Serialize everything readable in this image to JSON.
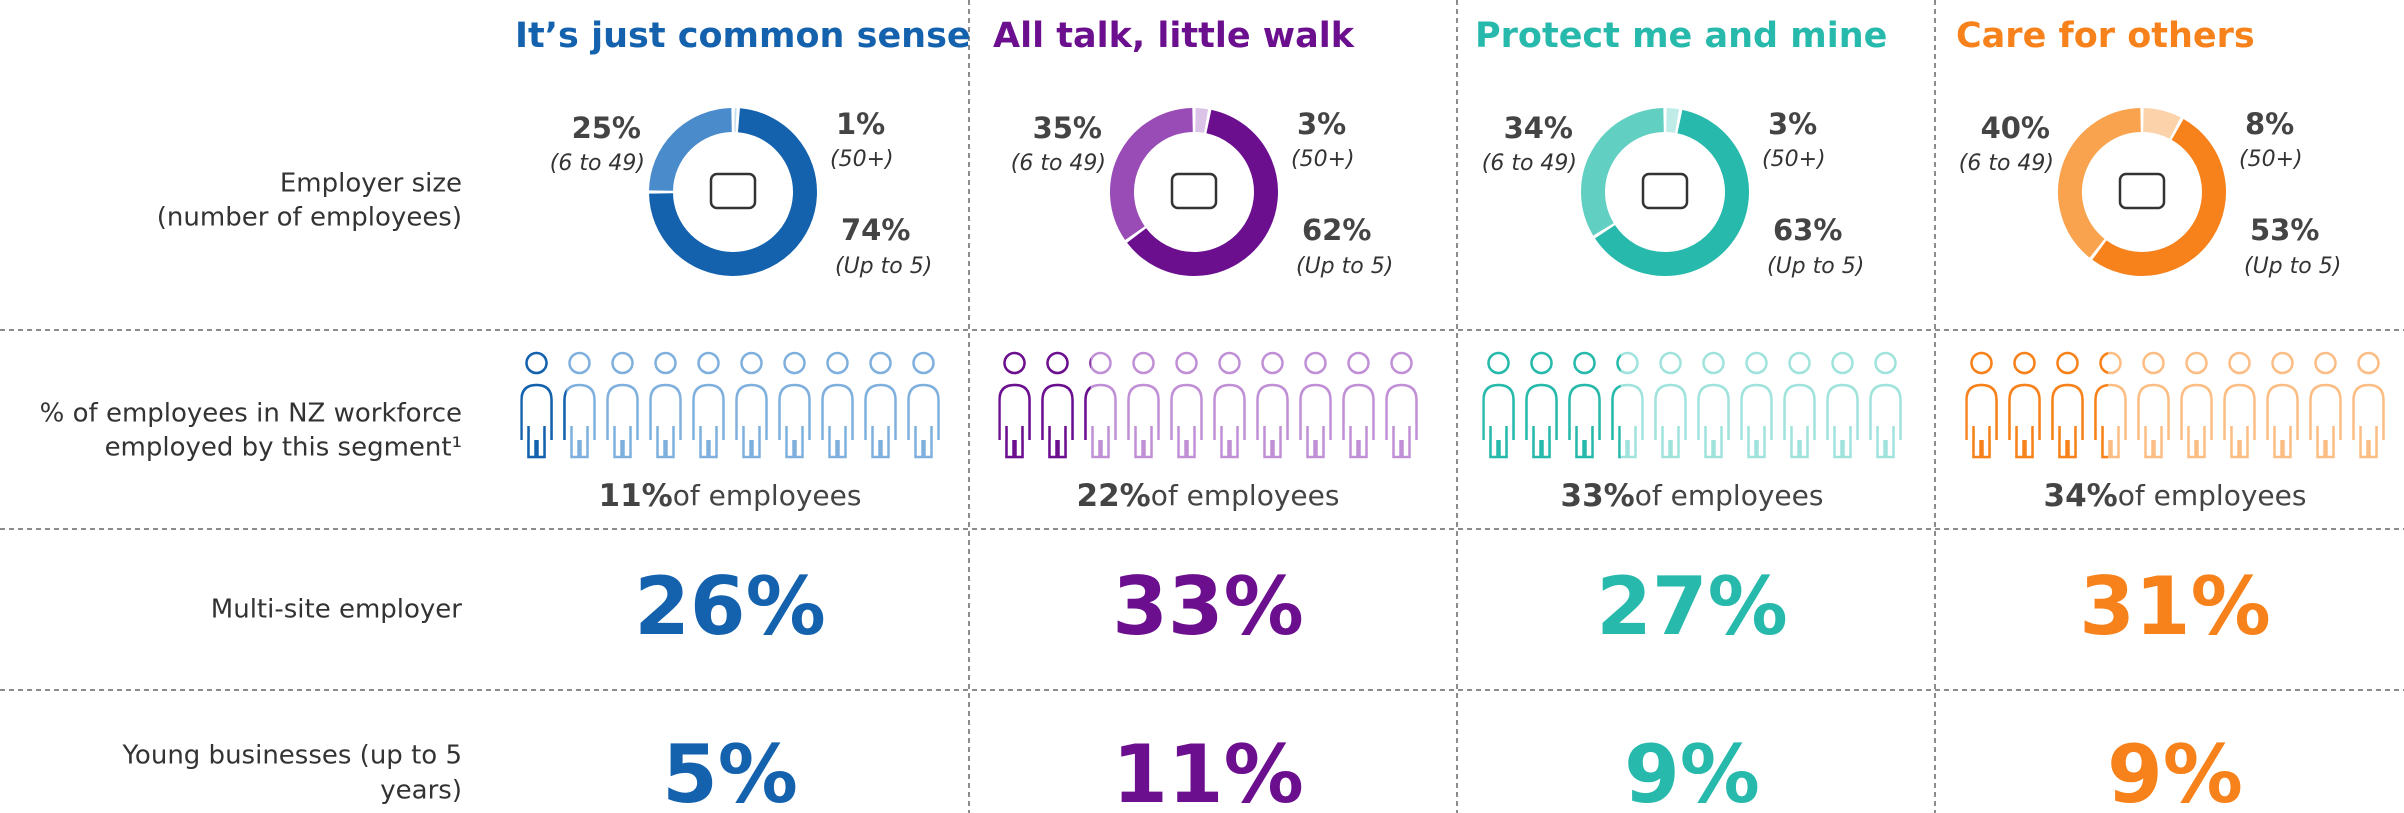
{
  "row_labels": [
    [
      "Employer size",
      "(number of employees)"
    ],
    [
      "% of employees in NZ workforce",
      "employed by this segment¹"
    ],
    [
      "Multi-site employer"
    ],
    [
      "Young businesses (up to 5",
      "years)"
    ]
  ],
  "segments": [
    {
      "title": "It’s just common sense",
      "color": "#1462ae",
      "light_color": "#7fb0dd",
      "donut": [
        {
          "value": 1,
          "label": "1%",
          "note": "(50+)",
          "color": "#c9dcef"
        },
        {
          "value": 74,
          "label": "74%",
          "note": "(Up to 5)",
          "color": "#1462ae"
        },
        {
          "value": 25,
          "label": "25%",
          "note": "(6 to 49)",
          "color": "#4a8bcb"
        }
      ],
      "employees": {
        "value": 11,
        "label": "11%",
        "text": "of employees"
      },
      "multi_site": "26%",
      "young": "5%"
    },
    {
      "title": "All talk, little walk",
      "color": "#6b0f8f",
      "light_color": "#c08fd6",
      "donut": [
        {
          "value": 3,
          "label": "3%",
          "note": "(50+)",
          "color": "#dcc3e8"
        },
        {
          "value": 62,
          "label": "62%",
          "note": "(Up to 5)",
          "color": "#6b0f8f"
        },
        {
          "value": 35,
          "label": "35%",
          "note": "(6 to 49)",
          "color": "#9a4cb6"
        }
      ],
      "employees": {
        "value": 22,
        "label": "22%",
        "text": "of employees"
      },
      "multi_site": "33%",
      "young": "11%"
    },
    {
      "title": "Protect me and mine",
      "color": "#27b9ab",
      "light_color": "#9fe3dc",
      "donut": [
        {
          "value": 3,
          "label": "3%",
          "note": "(50+)",
          "color": "#bfece7"
        },
        {
          "value": 63,
          "label": "63%",
          "note": "(Up to 5)",
          "color": "#27b9ab"
        },
        {
          "value": 34,
          "label": "34%",
          "note": "(6 to 49)",
          "color": "#62cfc3"
        }
      ],
      "employees": {
        "value": 33,
        "label": "33%",
        "text": "of employees"
      },
      "multi_site": "27%",
      "young": "9%"
    },
    {
      "title": "Care for others",
      "color": "#f7821b",
      "light_color": "#fbbd84",
      "donut": [
        {
          "value": 8,
          "label": "8%",
          "note": "(50+)",
          "color": "#fcd2aa"
        },
        {
          "value": 53,
          "label": "53%",
          "note": "(Up to 5)",
          "color": "#f7821b"
        },
        {
          "value": 40,
          "label": "40%",
          "note": "(6 to 49)",
          "color": "#f9a34f"
        }
      ],
      "employees": {
        "value": 34,
        "label": "34%",
        "text": "of employees"
      },
      "multi_site": "31%",
      "young": "9%"
    }
  ]
}
